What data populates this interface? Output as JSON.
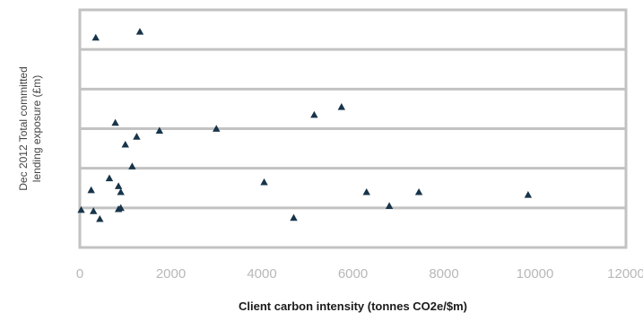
{
  "chart_data": {
    "type": "scatter",
    "title": "",
    "xlabel": "Client carbon intensity (tonnes CO2e/$m)",
    "ylabel_lines": [
      "Dec 2012 Total committed",
      "lending exposure (£m)"
    ],
    "xlim": [
      0,
      12000
    ],
    "ylim": [
      0,
      6
    ],
    "x_ticks": [
      0,
      2000,
      4000,
      6000,
      8000,
      10000,
      12000
    ],
    "x_tick_labels": [
      "0",
      "2000",
      "4000",
      "6000",
      "8000",
      "10000",
      "12000"
    ],
    "y_tick_labels_shown": false,
    "grid": "horizontal",
    "legend": "none",
    "colors": {
      "marker": "#17344a",
      "grid": "#c2c2c2",
      "frame": "#c2c2c2"
    },
    "series": [
      {
        "marker": "triangle",
        "points": [
          {
            "x": 350,
            "y": 5.3
          },
          {
            "x": 1320,
            "y": 5.45
          },
          {
            "x": 780,
            "y": 3.15
          },
          {
            "x": 1750,
            "y": 2.95
          },
          {
            "x": 1250,
            "y": 2.8
          },
          {
            "x": 1000,
            "y": 2.6
          },
          {
            "x": 3000,
            "y": 3.0
          },
          {
            "x": 5150,
            "y": 3.35
          },
          {
            "x": 5750,
            "y": 3.55
          },
          {
            "x": 1150,
            "y": 2.05
          },
          {
            "x": 650,
            "y": 1.75
          },
          {
            "x": 250,
            "y": 1.45
          },
          {
            "x": 850,
            "y": 1.55
          },
          {
            "x": 900,
            "y": 1.4
          },
          {
            "x": 4050,
            "y": 1.65
          },
          {
            "x": 6300,
            "y": 1.4
          },
          {
            "x": 7450,
            "y": 1.4
          },
          {
            "x": 9850,
            "y": 1.33
          },
          {
            "x": 6800,
            "y": 1.05
          },
          {
            "x": 30,
            "y": 0.95
          },
          {
            "x": 300,
            "y": 0.92
          },
          {
            "x": 850,
            "y": 0.97
          },
          {
            "x": 900,
            "y": 1.0
          },
          {
            "x": 440,
            "y": 0.72
          },
          {
            "x": 4700,
            "y": 0.75
          }
        ]
      }
    ]
  }
}
